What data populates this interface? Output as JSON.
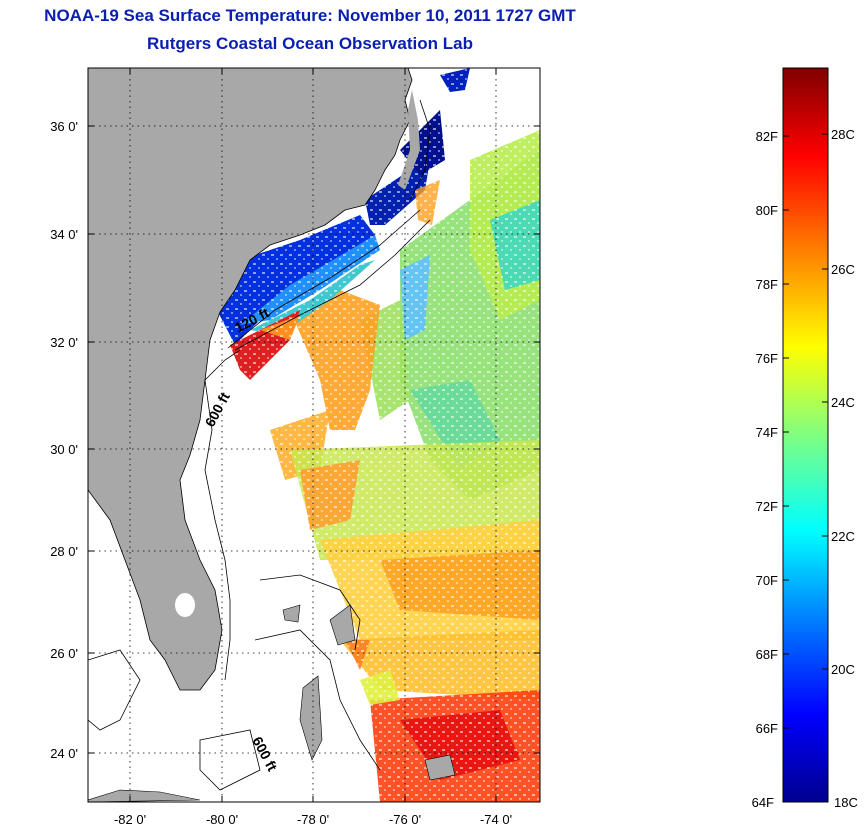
{
  "title": "NOAA-19 Sea Surface Temperature:  November 10, 2011 1727 GMT",
  "subtitle": "Rutgers Coastal Ocean Observation Lab",
  "map": {
    "lon_range": [
      -83,
      -73
    ],
    "lat_range": [
      23,
      37
    ],
    "lon_ticks": [
      {
        "value": -82,
        "label": "-82 0'"
      },
      {
        "value": -80,
        "label": "-80 0'"
      },
      {
        "value": -78,
        "label": "-78 0'"
      },
      {
        "value": -76,
        "label": "-76 0'"
      },
      {
        "value": -74,
        "label": "-74 0'"
      }
    ],
    "lat_ticks": [
      {
        "value": 36,
        "label": "36 0'"
      },
      {
        "value": 34,
        "label": "34 0'"
      },
      {
        "value": 32,
        "label": "32 0'"
      },
      {
        "value": 30,
        "label": "30 0'"
      },
      {
        "value": 28,
        "label": "28 0'"
      },
      {
        "value": 26,
        "label": "26 0'"
      },
      {
        "value": 24,
        "label": "24 0'"
      }
    ],
    "contour_labels": [
      {
        "label": "120 ft"
      },
      {
        "label": "600 ft"
      },
      {
        "label": "600 ft"
      }
    ],
    "land_color": "#a8a8a8"
  },
  "colorbar": {
    "f_labels": [
      "82F",
      "80F",
      "78F",
      "76F",
      "74F",
      "72F",
      "70F",
      "68F",
      "66F",
      "64F"
    ],
    "c_labels": [
      "28C",
      "26C",
      "24C",
      "22C",
      "20C",
      "18C"
    ],
    "colors": [
      "#00008f",
      "#0000ff",
      "#0080ff",
      "#00ffff",
      "#80ff80",
      "#ffff00",
      "#ff8000",
      "#ff0000",
      "#800000"
    ]
  }
}
